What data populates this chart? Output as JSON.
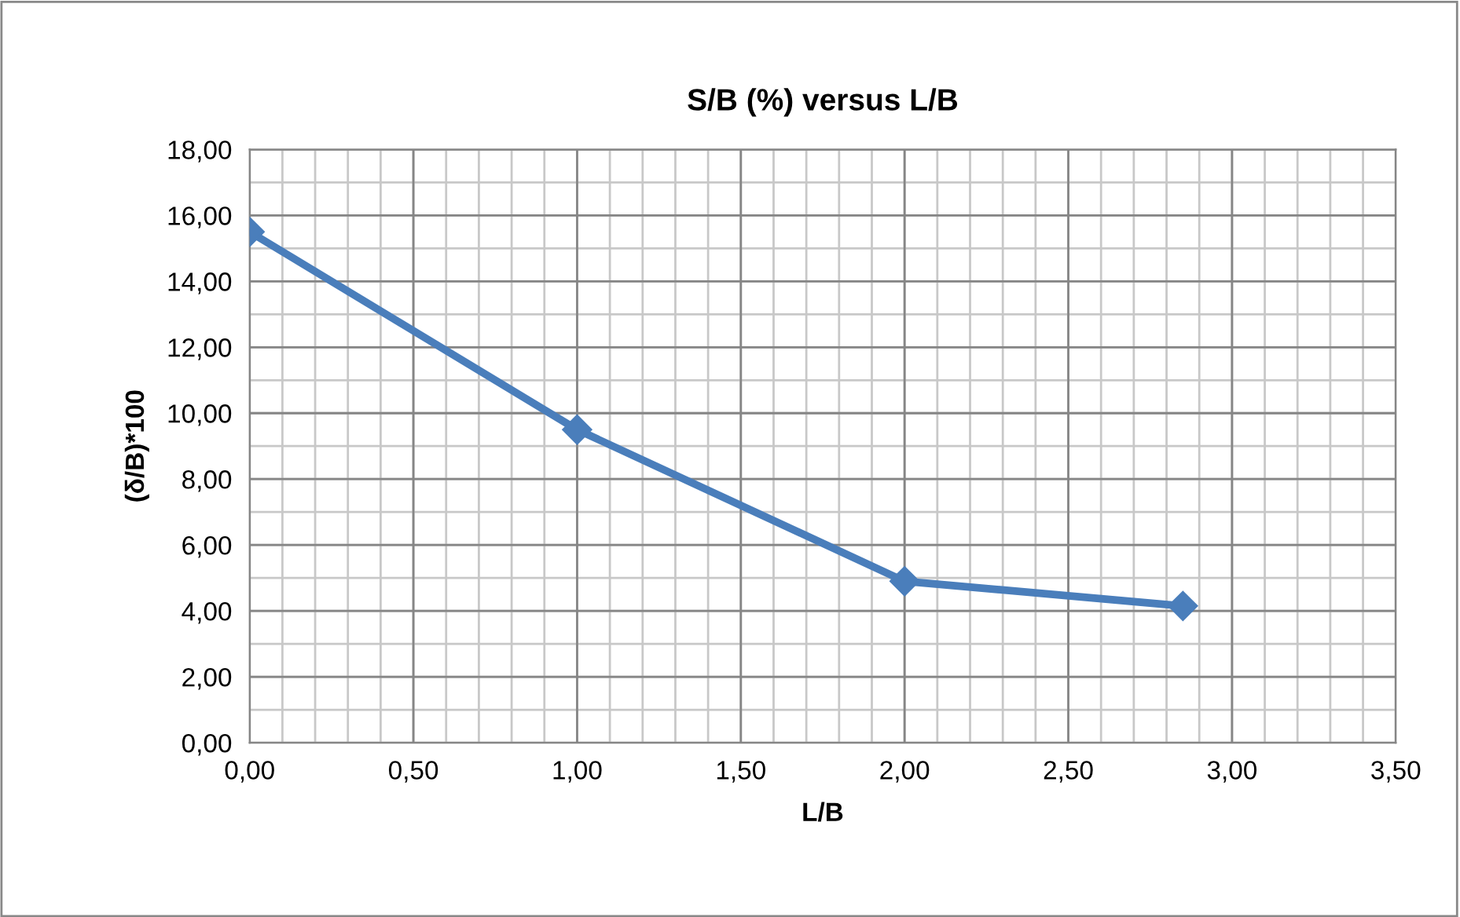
{
  "chart_data": {
    "type": "line",
    "title": "S/B (%) versus L/B",
    "xlabel": "L/B",
    "ylabel": "(δ/B)*100",
    "x": [
      0,
      1,
      2,
      2.85
    ],
    "series": [
      {
        "color": "#4a7ebb",
        "values": [
          15.5,
          9.5,
          4.9,
          4.15
        ]
      }
    ],
    "xlim": [
      0,
      3.5
    ],
    "ylim": [
      0,
      18
    ],
    "xticks": [
      {
        "value": 0,
        "label": "0,00"
      },
      {
        "value": 0.5,
        "label": "0,50"
      },
      {
        "value": 1,
        "label": "1,00"
      },
      {
        "value": 1.5,
        "label": "1,50"
      },
      {
        "value": 2,
        "label": "2,00"
      },
      {
        "value": 2.5,
        "label": "2,50"
      },
      {
        "value": 3,
        "label": "3,00"
      },
      {
        "value": 3.5,
        "label": "3,50"
      }
    ],
    "yticks": [
      {
        "value": 0,
        "label": "0,00"
      },
      {
        "value": 2,
        "label": "2,00"
      },
      {
        "value": 4,
        "label": "4,00"
      },
      {
        "value": 6,
        "label": "6,00"
      },
      {
        "value": 8,
        "label": "8,00"
      },
      {
        "value": 10,
        "label": "10,00"
      },
      {
        "value": 12,
        "label": "12,00"
      },
      {
        "value": 14,
        "label": "14,00"
      },
      {
        "value": 16,
        "label": "16,00"
      },
      {
        "value": 18,
        "label": "18,00"
      }
    ],
    "grid": true,
    "marker": "diamond",
    "line_style": "solid",
    "legend": false
  }
}
